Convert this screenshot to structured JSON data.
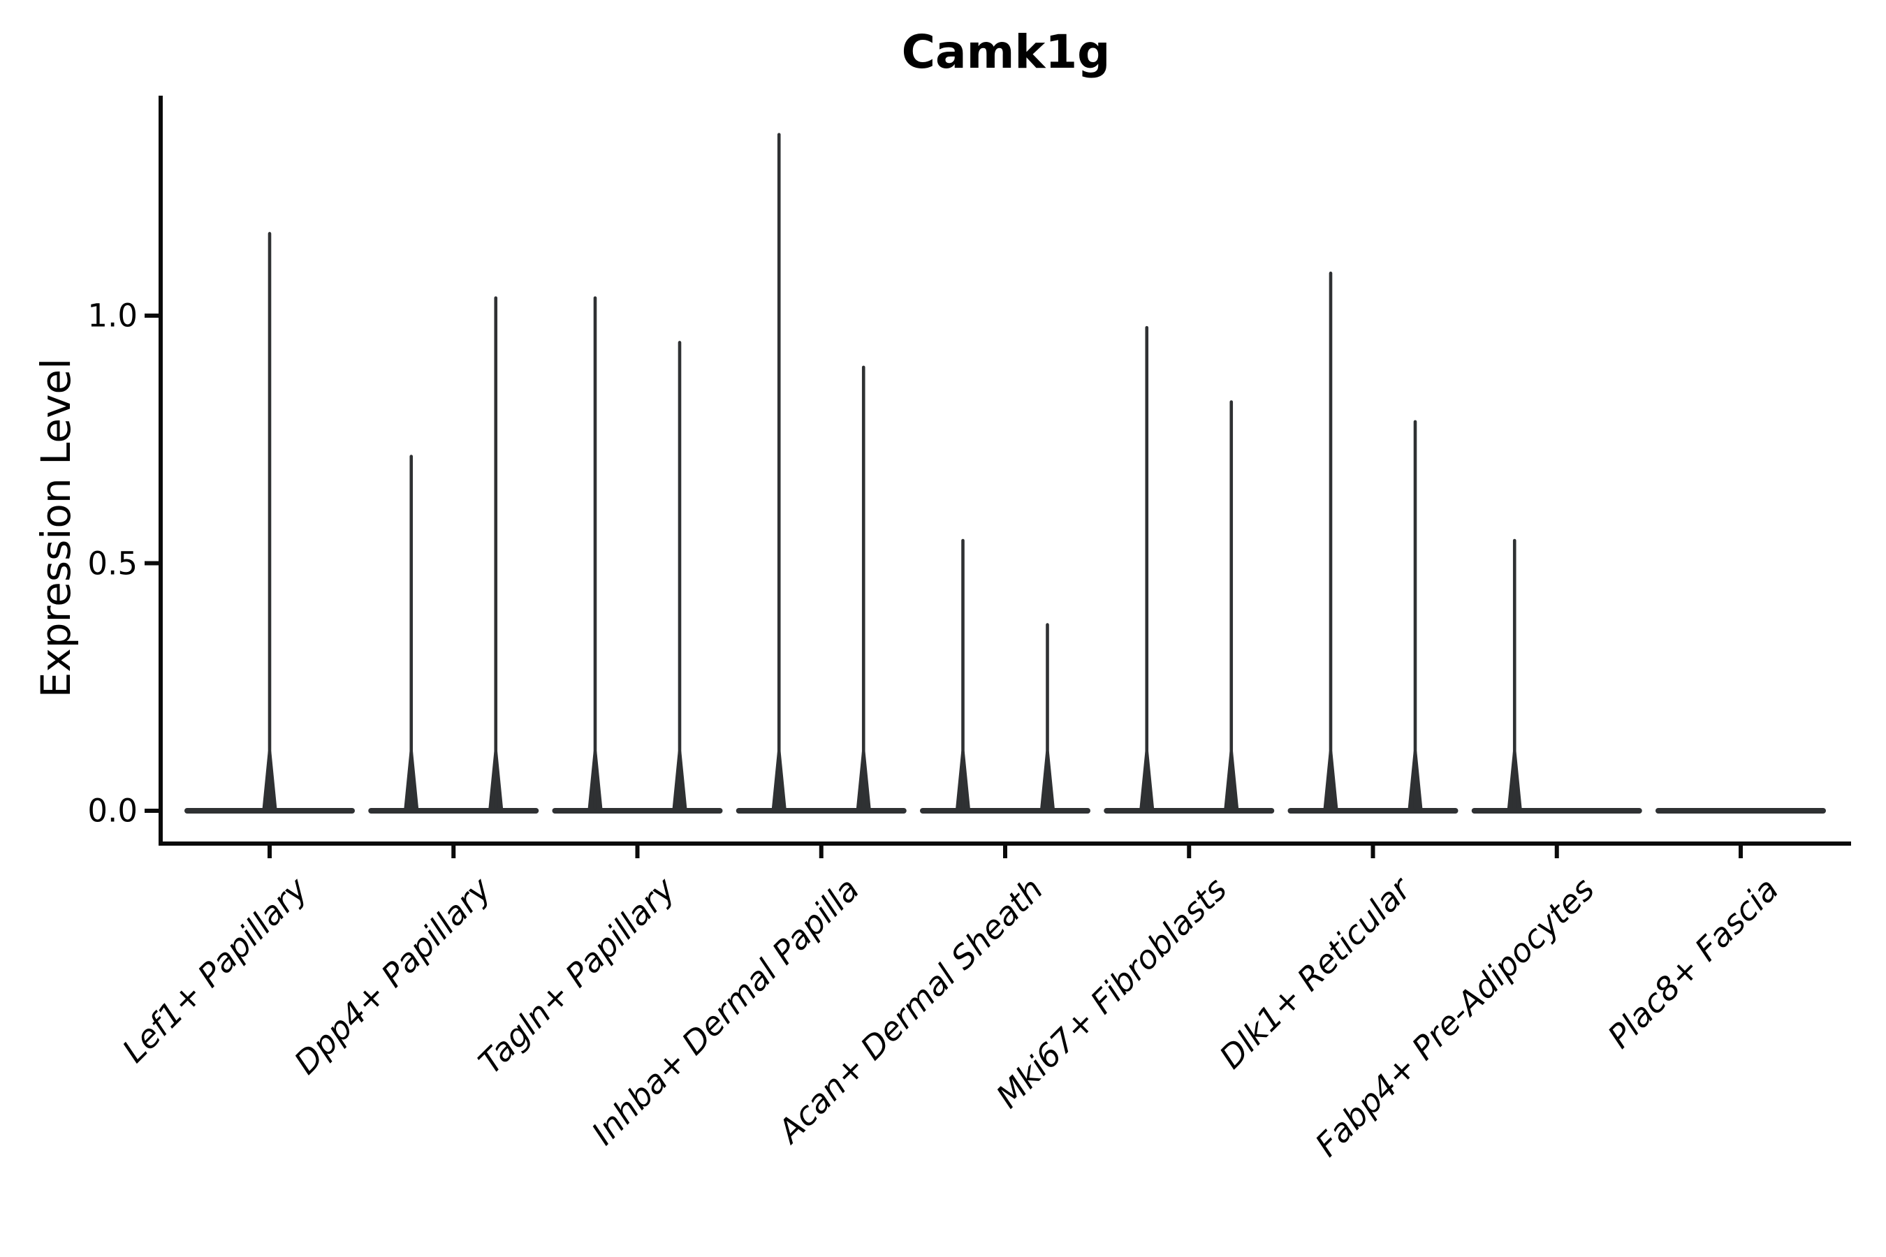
{
  "title": "Camk1g",
  "axes": {
    "y_label": "Expression Level",
    "y_ticks": [
      "0.0",
      "0.5",
      "1.0"
    ]
  },
  "colors": {
    "violin": "#2f3133",
    "axis": "#0a0a0a",
    "text": "#000000",
    "background": "#ffffff"
  },
  "chart_data": {
    "type": "violin",
    "title": "Camk1g",
    "xlabel": "",
    "ylabel": "Expression Level",
    "ylim": [
      -0.07,
      1.44
    ],
    "yticks": [
      0.0,
      0.5,
      1.0
    ],
    "grid": false,
    "legend_position": "none",
    "categories": [
      "Lef1+ Papillary",
      "Dpp4+ Papillary",
      "Tagln+ Papillary",
      "Inhba+ Dermal Papilla",
      "Acan+ Dermal Sheath",
      "Mki67+ Fibroblasts",
      "Dlk1+ Reticular",
      "Fabp4+ Pre-Adipocytes",
      "Plac8+ Fascia"
    ],
    "violins": [
      {
        "category": "Lef1+ Papillary",
        "parts": [
          {
            "position": "center",
            "peak": 1.17
          }
        ]
      },
      {
        "category": "Dpp4+ Papillary",
        "parts": [
          {
            "position": "left",
            "peak": 0.72
          },
          {
            "position": "right",
            "peak": 1.04
          }
        ]
      },
      {
        "category": "Tagln+ Papillary",
        "parts": [
          {
            "position": "left",
            "peak": 1.04
          },
          {
            "position": "right",
            "peak": 0.95
          }
        ]
      },
      {
        "category": "Inhba+ Dermal Papilla",
        "parts": [
          {
            "position": "left",
            "peak": 1.37
          },
          {
            "position": "right",
            "peak": 0.9
          }
        ]
      },
      {
        "category": "Acan+ Dermal Sheath",
        "parts": [
          {
            "position": "left",
            "peak": 0.55
          },
          {
            "position": "right",
            "peak": 0.38
          }
        ]
      },
      {
        "category": "Mki67+ Fibroblasts",
        "parts": [
          {
            "position": "left",
            "peak": 0.98
          },
          {
            "position": "right",
            "peak": 0.83
          }
        ]
      },
      {
        "category": "Dlk1+ Reticular",
        "parts": [
          {
            "position": "left",
            "peak": 1.09
          },
          {
            "position": "right",
            "peak": 0.79
          }
        ]
      },
      {
        "category": "Fabp4+ Pre-Adipocytes",
        "parts": [
          {
            "position": "left",
            "peak": 0.55
          },
          {
            "position": "right",
            "peak": 0.0
          }
        ]
      },
      {
        "category": "Plac8+ Fascia",
        "parts": [
          {
            "position": "left",
            "peak": 0.0
          },
          {
            "position": "right",
            "peak": 0.0
          }
        ]
      }
    ],
    "baseline_value": 0.0
  }
}
